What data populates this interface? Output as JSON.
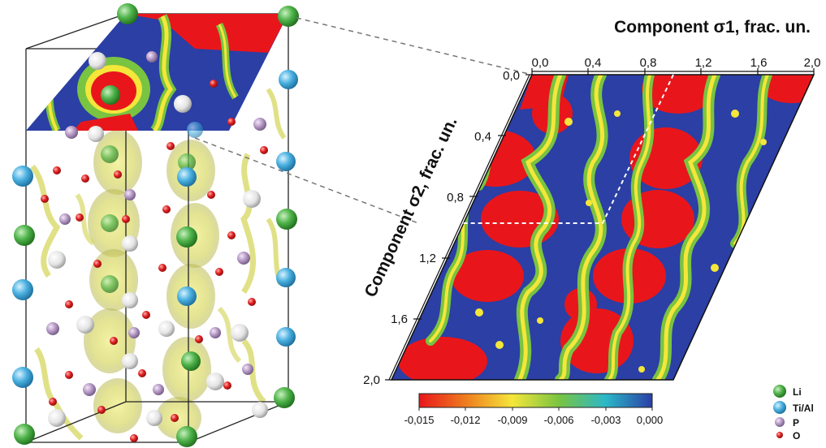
{
  "map": {
    "x_axis_title": "Component σ1, frac. un.",
    "y_axis_title": "Component σ2, frac. un.",
    "x_ticks": [
      "0,0",
      "0,4",
      "0,8",
      "1,2",
      "1,6",
      "2,0"
    ],
    "y_ticks": [
      "0,0",
      "0,4",
      "0,8",
      "1,2",
      "1,6",
      "2,0"
    ]
  },
  "colorbar": {
    "ticks": [
      "-0,015",
      "-0,012",
      "-0,009",
      "-0,006",
      "-0,003",
      "0,000"
    ],
    "colors": [
      "#e8161b",
      "#ee7d1e",
      "#f5e63a",
      "#79c441",
      "#2bb8c8",
      "#2b3fa5"
    ]
  },
  "legend": {
    "items": [
      {
        "label": "Li",
        "color": "#4fb34a"
      },
      {
        "label": "Ti/Al",
        "color": "#4ab0e0"
      },
      {
        "label": "P",
        "color": "#b79ac6"
      },
      {
        "label": "O",
        "color": "#e02020"
      }
    ]
  }
}
